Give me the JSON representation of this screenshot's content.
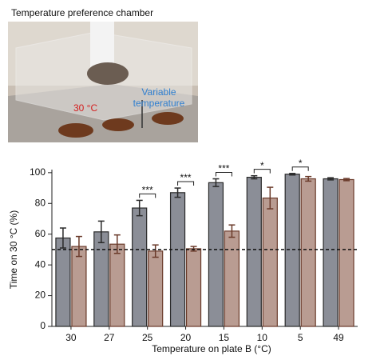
{
  "photo": {
    "title": "Temperature preference chamber",
    "label_left": "30 °C",
    "label_right": [
      "Variable",
      "temperature"
    ]
  },
  "chart_data": {
    "type": "bar",
    "xlabel": "Temperature on plate B (°C)",
    "ylabel": "Time on 30 °C (%)",
    "categories": [
      "30",
      "27",
      "25",
      "20",
      "15",
      "10",
      "5",
      "49"
    ],
    "series": [
      {
        "color": "#8b8e97",
        "values": [
          57.5,
          61.5,
          77,
          87,
          93.5,
          97,
          99,
          96
        ],
        "errors": [
          6.5,
          7,
          5,
          3,
          2.5,
          1,
          0.5,
          0.7
        ]
      },
      {
        "color": "#b99c92",
        "values": [
          52,
          53.5,
          49,
          50.5,
          62,
          83.5,
          96,
          95.5
        ],
        "errors": [
          6.5,
          6,
          4,
          1.5,
          4,
          7,
          1.5,
          0.7
        ]
      }
    ],
    "significance": [
      null,
      null,
      "***",
      "***",
      "***",
      "*",
      "*",
      null
    ],
    "hline": 50,
    "ylim": [
      0,
      102
    ],
    "yticks": [
      0,
      20,
      40,
      60,
      80,
      100
    ]
  }
}
